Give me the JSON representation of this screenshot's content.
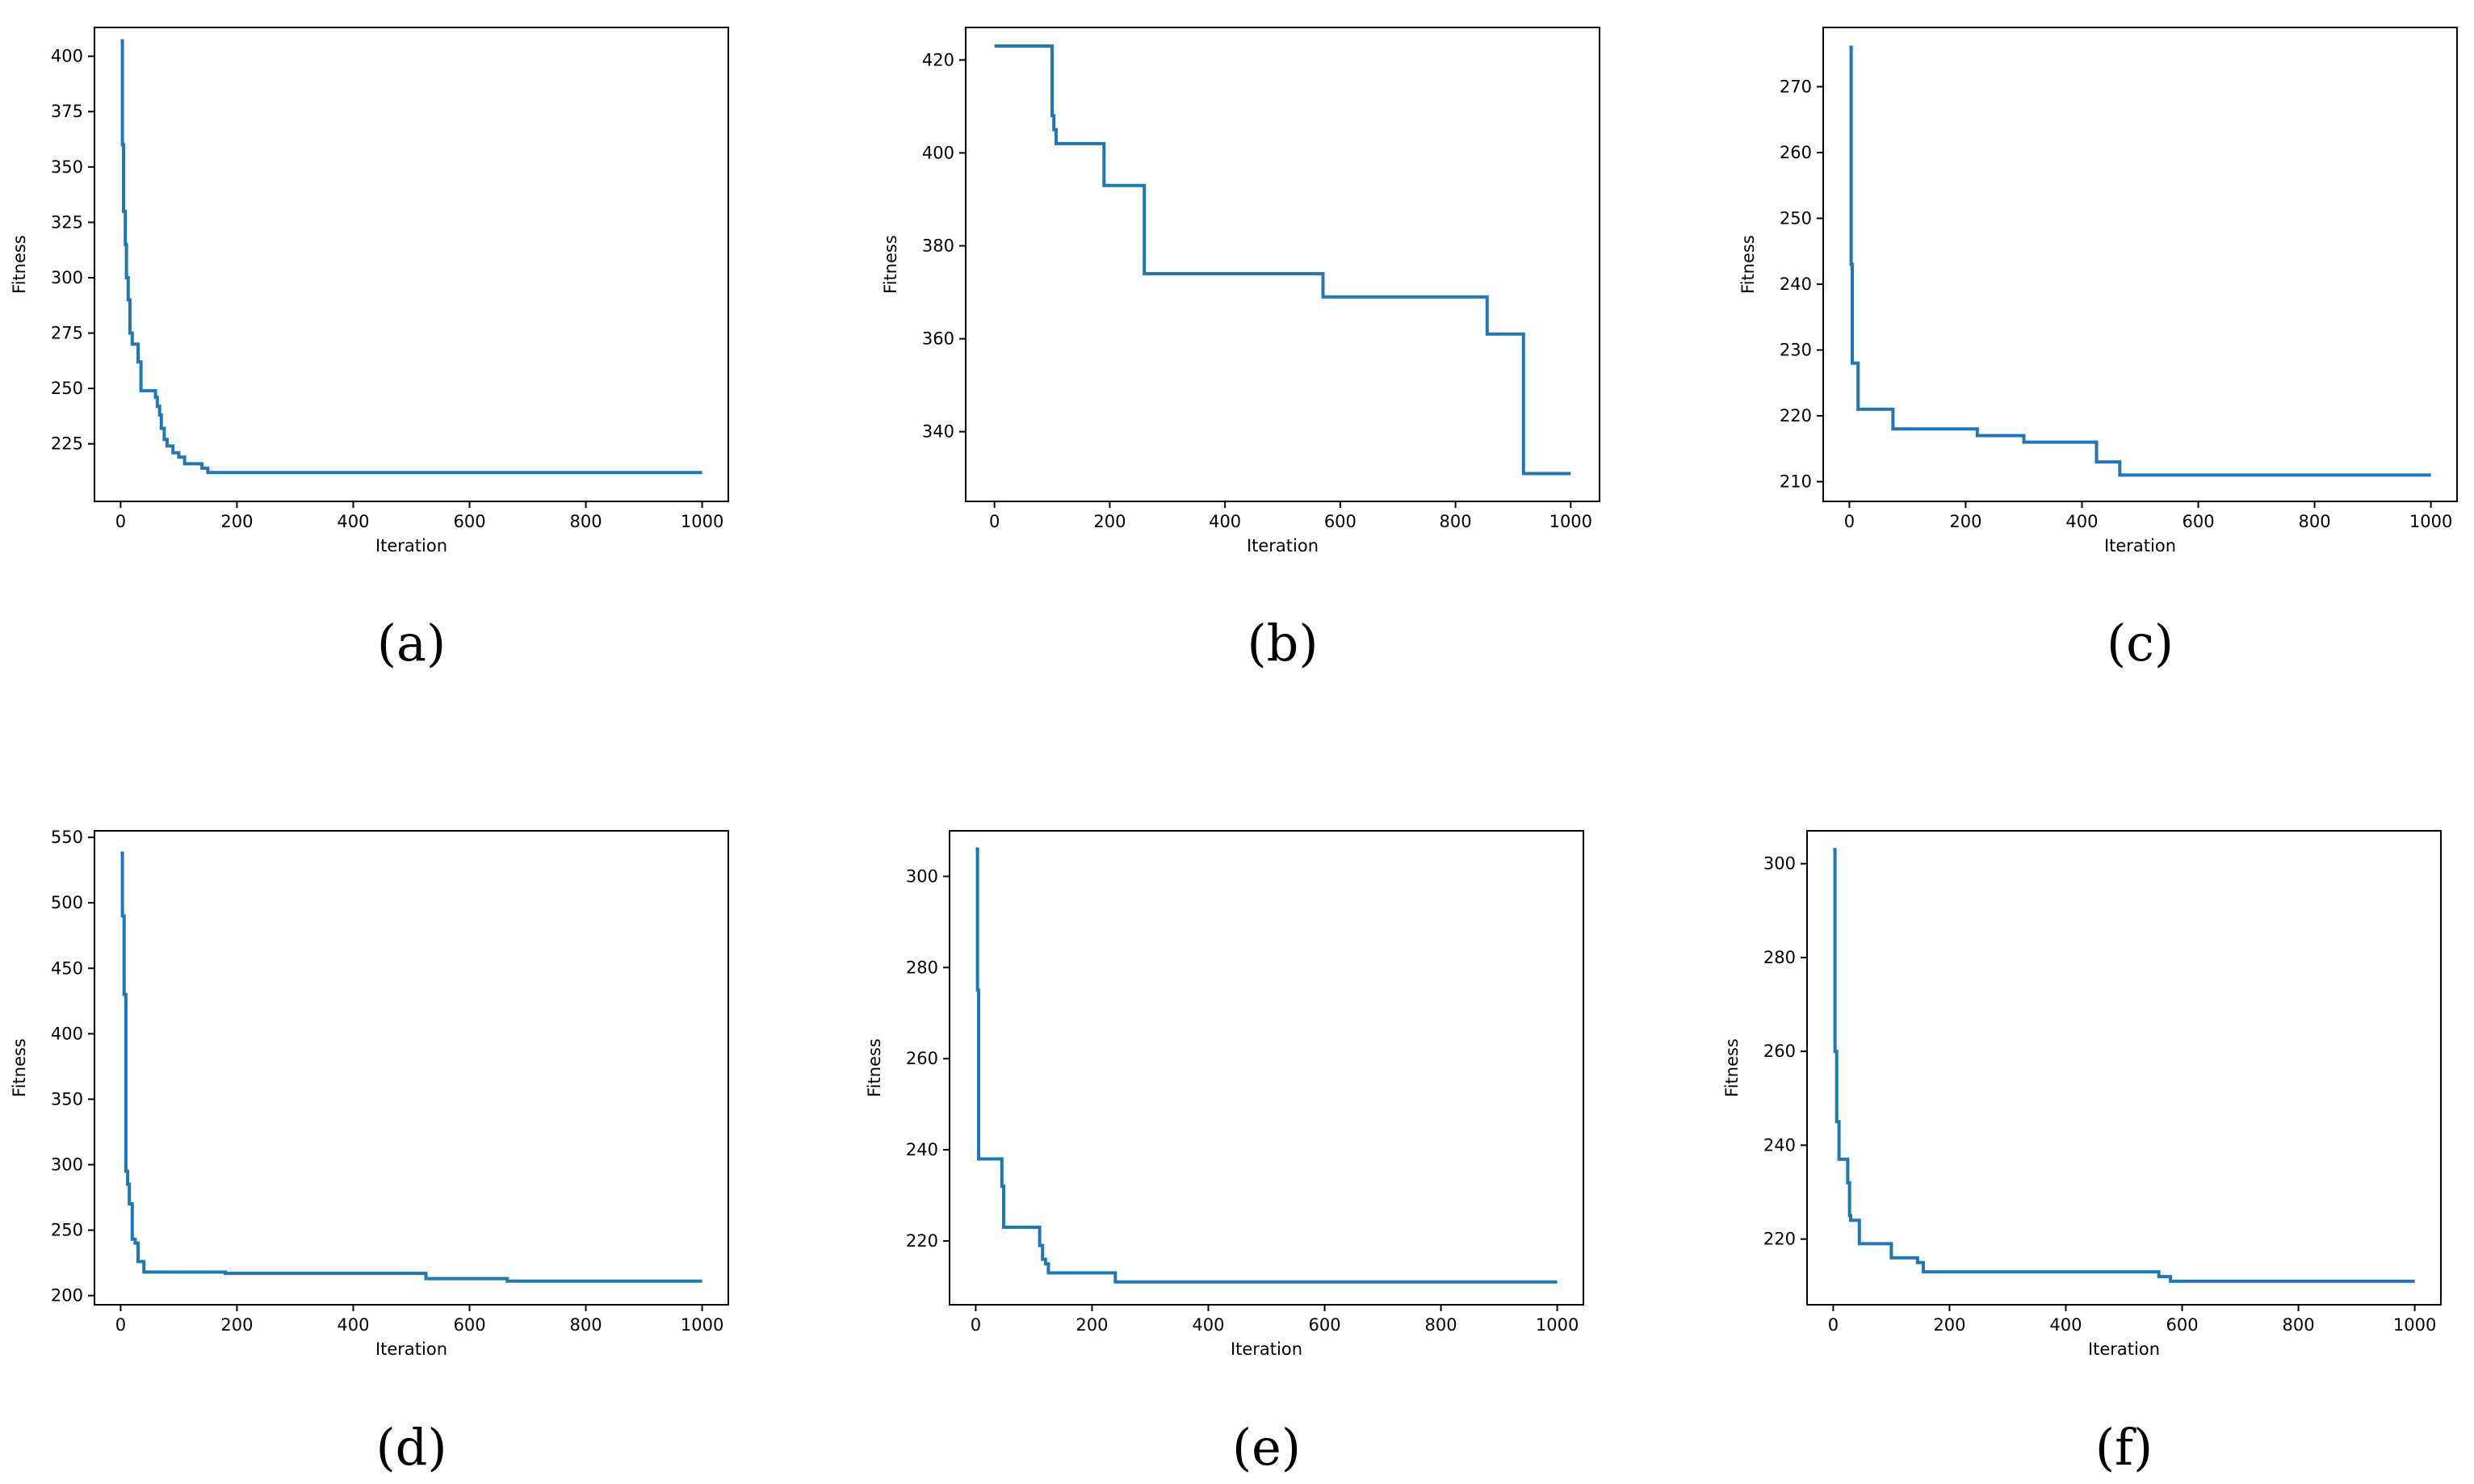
{
  "chart_data": [
    {
      "type": "line",
      "caption": "(a)",
      "xlabel": "Iteration",
      "ylabel": "Fitness",
      "xlim": [
        -45,
        1045
      ],
      "ylim": [
        199,
        413
      ],
      "xticks": [
        0,
        200,
        400,
        600,
        800,
        1000
      ],
      "yticks": [
        225,
        250,
        275,
        300,
        325,
        350,
        375,
        400
      ],
      "grid": false,
      "line_color": "#1f77b4",
      "series": [
        {
          "style": "step",
          "x": [
            0,
            3,
            5,
            8,
            10,
            13,
            16,
            20,
            30,
            35,
            60,
            63,
            67,
            70,
            75,
            80,
            90,
            100,
            110,
            140,
            150,
            1000
          ],
          "y": [
            407,
            360,
            330,
            315,
            300,
            290,
            275,
            270,
            262,
            249,
            246,
            242,
            238,
            232,
            227,
            224,
            221,
            219,
            216,
            214,
            212,
            212
          ]
        }
      ]
    },
    {
      "type": "line",
      "caption": "(b)",
      "xlabel": "Iteration",
      "ylabel": "Fitness",
      "xlim": [
        -50,
        1050
      ],
      "ylim": [
        325,
        427
      ],
      "xticks": [
        0,
        200,
        400,
        600,
        800,
        1000
      ],
      "yticks": [
        340,
        360,
        380,
        400,
        420
      ],
      "grid": false,
      "line_color": "#1f77b4",
      "series": [
        {
          "style": "step",
          "x": [
            0,
            100,
            103,
            107,
            190,
            260,
            570,
            855,
            918,
            1000
          ],
          "y": [
            423,
            408,
            405,
            402,
            393,
            374,
            369,
            361,
            331,
            331
          ]
        }
      ]
    },
    {
      "type": "line",
      "caption": "(c)",
      "xlabel": "Iteration",
      "ylabel": "Fitness",
      "xlim": [
        -45,
        1045
      ],
      "ylim": [
        207,
        279
      ],
      "xticks": [
        0,
        200,
        400,
        600,
        800,
        1000
      ],
      "yticks": [
        210,
        220,
        230,
        240,
        250,
        260,
        270
      ],
      "grid": false,
      "line_color": "#1f77b4",
      "series": [
        {
          "style": "step",
          "x": [
            0,
            3,
            5,
            15,
            75,
            220,
            300,
            425,
            465,
            1000
          ],
          "y": [
            276,
            243,
            228,
            221,
            218,
            217,
            216,
            213,
            211,
            211
          ]
        }
      ]
    },
    {
      "type": "line",
      "caption": "(d)",
      "xlabel": "Iteration",
      "ylabel": "Fitness",
      "xlim": [
        -45,
        1045
      ],
      "ylim": [
        193,
        555
      ],
      "xticks": [
        0,
        200,
        400,
        600,
        800,
        1000
      ],
      "yticks": [
        200,
        250,
        300,
        350,
        400,
        450,
        500,
        550
      ],
      "grid": false,
      "line_color": "#1f77b4",
      "series": [
        {
          "style": "step",
          "x": [
            0,
            3,
            6,
            9,
            12,
            15,
            20,
            25,
            30,
            40,
            180,
            525,
            665,
            1000
          ],
          "y": [
            538,
            490,
            430,
            295,
            285,
            270,
            243,
            240,
            226,
            218,
            217,
            213,
            211,
            211
          ]
        }
      ]
    },
    {
      "type": "line",
      "caption": "(e)",
      "xlabel": "Iteration",
      "ylabel": "Fitness",
      "xlim": [
        -45,
        1045
      ],
      "ylim": [
        206,
        310
      ],
      "xticks": [
        0,
        200,
        400,
        600,
        800,
        1000
      ],
      "yticks": [
        220,
        240,
        260,
        280,
        300
      ],
      "grid": false,
      "line_color": "#1f77b4",
      "series": [
        {
          "style": "step",
          "x": [
            0,
            3,
            5,
            45,
            48,
            110,
            115,
            120,
            125,
            240,
            1000
          ],
          "y": [
            306,
            275,
            238,
            232,
            223,
            219,
            216,
            215,
            213,
            211,
            211
          ]
        }
      ]
    },
    {
      "type": "line",
      "caption": "(f)",
      "xlabel": "Iteration",
      "ylabel": "Fitness",
      "xlim": [
        -45,
        1045
      ],
      "ylim": [
        206,
        307
      ],
      "xticks": [
        0,
        200,
        400,
        600,
        800,
        1000
      ],
      "yticks": [
        220,
        240,
        260,
        280,
        300
      ],
      "grid": false,
      "line_color": "#1f77b4",
      "series": [
        {
          "style": "step",
          "x": [
            0,
            3,
            6,
            10,
            25,
            28,
            30,
            45,
            100,
            145,
            155,
            560,
            580,
            1000
          ],
          "y": [
            303,
            260,
            245,
            237,
            232,
            225,
            224,
            219,
            216,
            215,
            213,
            212,
            211,
            211
          ]
        }
      ]
    }
  ]
}
